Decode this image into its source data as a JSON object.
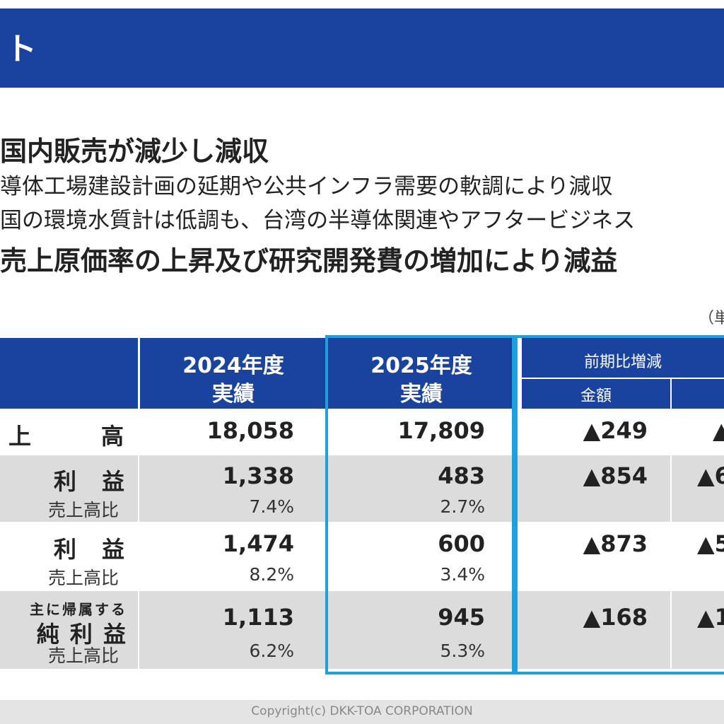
{
  "header": {
    "title": "ト"
  },
  "summary": {
    "headline1": "国内販売が減少し減収",
    "line1": "導体工場建設計画の延期や公共インフラ需要の軟調により減収",
    "line2": "国の環境水質計は低調も、台湾の半導体関連やアフタービジネス",
    "headline2": "売上原価率の上昇及び研究開発費の増加により減益"
  },
  "unit_note": "（単",
  "table": {
    "col_2024": [
      "2024年度",
      "実績"
    ],
    "col_2025": [
      "2025年度",
      "実績"
    ],
    "col_change": "前期比増減",
    "col_amount": "金額",
    "rows": [
      {
        "label": "上　　高",
        "v2024": "18,058",
        "v2025": "17,809",
        "diff": "▲249",
        "diff2": "▲"
      },
      {
        "label": "利　益",
        "v2024": "1,338",
        "v2025": "483",
        "diff": "▲854",
        "diff2": "▲6",
        "ratio_label": "売上高比",
        "r2024": "7.4%",
        "r2025": "2.7%"
      },
      {
        "label": "利　益",
        "v2024": "1,474",
        "v2025": "600",
        "diff": "▲873",
        "diff2": "▲5",
        "ratio_label": "売上高比",
        "r2024": "8.2%",
        "r2025": "3.4%"
      },
      {
        "label_small": "主に帰属する",
        "label": "純 利 益",
        "v2024": "1,113",
        "v2025": "945",
        "diff": "▲168",
        "diff2": "▲1",
        "ratio_label": "売上高比",
        "r2024": "6.2%",
        "r2025": "5.3%"
      }
    ]
  },
  "footer": {
    "copyright": "Copyright(c) DKK-TOA CORPORATION"
  },
  "colors": {
    "header_blue": "#1a43a0",
    "highlight": "#1ea0dc",
    "row_gray": "#dcdcdc"
  }
}
